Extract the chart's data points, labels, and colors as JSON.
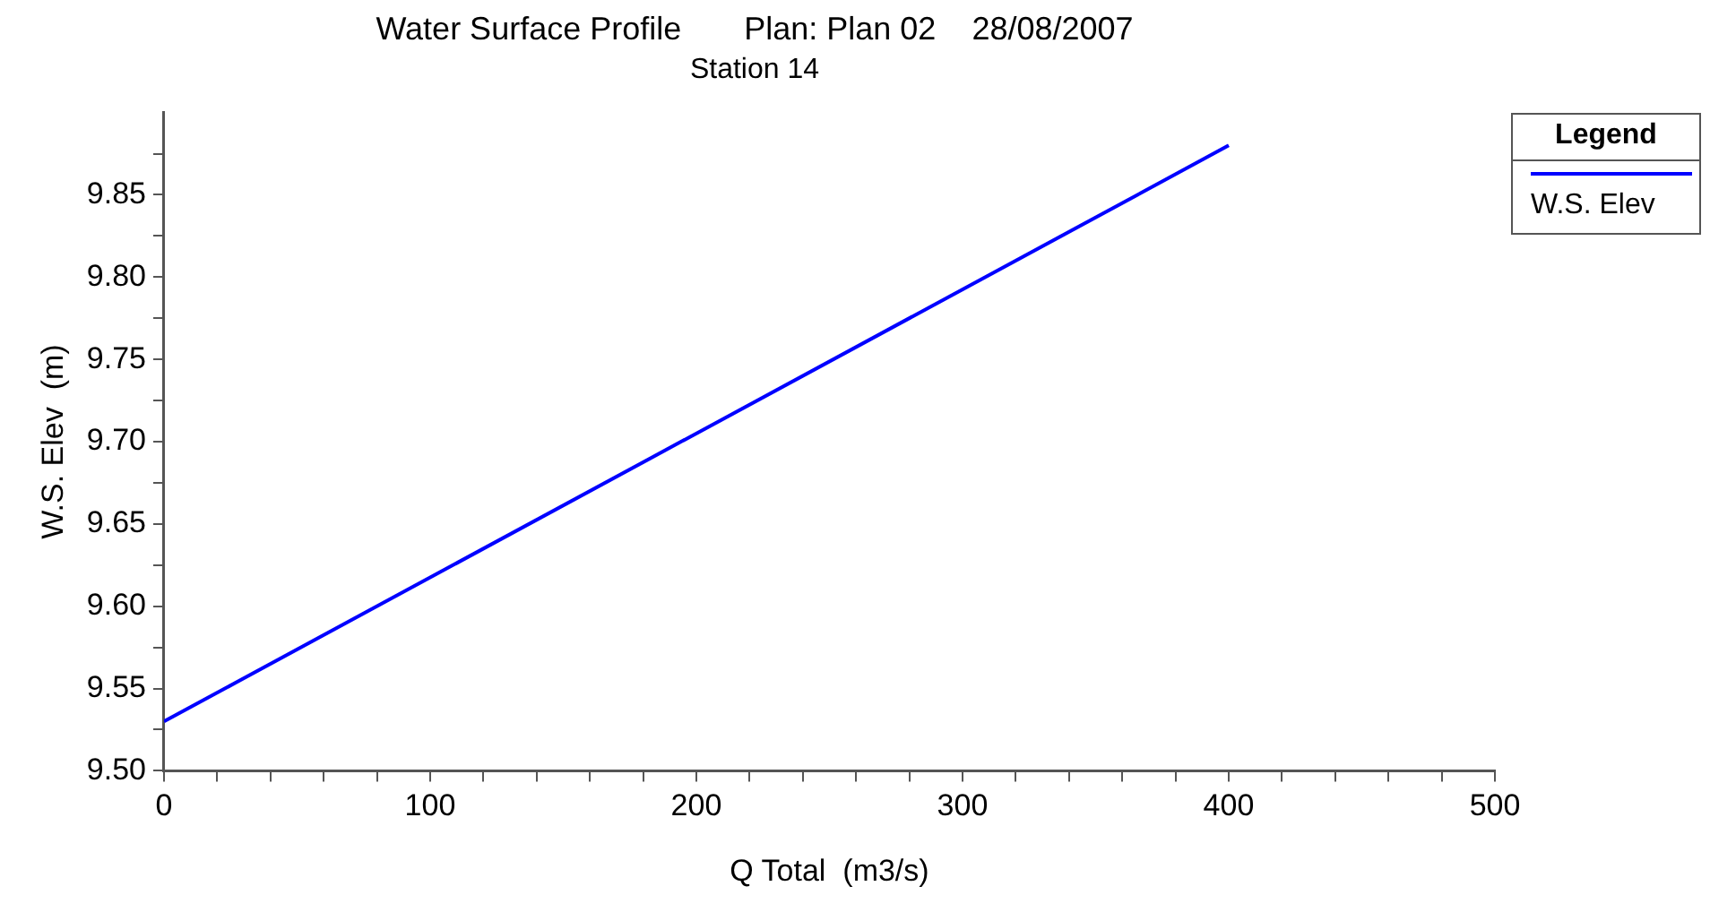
{
  "chart_data": {
    "type": "line",
    "title": "Water Surface Profile       Plan: Plan 02    28/08/2007",
    "subtitle": "Station 14",
    "xlabel": "Q Total  (m3/s)",
    "ylabel": "W.S. Elev  (m)",
    "legend_title": "Legend",
    "legend": "top right",
    "grid": false,
    "marker": "none",
    "line_style": "solid",
    "x": [
      0,
      400
    ],
    "series": [
      {
        "name": "W.S. Elev",
        "color": "#0000ff",
        "values": [
          9.53,
          9.88
        ]
      }
    ],
    "xlim": [
      0,
      500
    ],
    "xticks": [
      0,
      {
        "value": 20,
        "label": null
      },
      {
        "value": 40,
        "label": null
      },
      {
        "value": 60,
        "label": null
      },
      {
        "value": 80,
        "label": null
      },
      100,
      {
        "value": 120,
        "label": null
      },
      {
        "value": 140,
        "label": null
      },
      {
        "value": 160,
        "label": null
      },
      {
        "value": 180,
        "label": null
      },
      200,
      {
        "value": 220,
        "label": null
      },
      {
        "value": 240,
        "label": null
      },
      {
        "value": 260,
        "label": null
      },
      {
        "value": 280,
        "label": null
      },
      300,
      {
        "value": 320,
        "label": null
      },
      {
        "value": 340,
        "label": null
      },
      {
        "value": 360,
        "label": null
      },
      {
        "value": 380,
        "label": null
      },
      400,
      {
        "value": 420,
        "label": null
      },
      {
        "value": 440,
        "label": null
      },
      {
        "value": 460,
        "label": null
      },
      {
        "value": 480,
        "label": null
      },
      500
    ],
    "ylim": [
      9.5,
      9.9
    ],
    "yticks": [
      {
        "value": 9.5,
        "label": "9.50"
      },
      {
        "value": 9.525,
        "label": null
      },
      {
        "value": 9.55,
        "label": "9.55"
      },
      {
        "value": 9.575,
        "label": null
      },
      {
        "value": 9.6,
        "label": "9.60"
      },
      {
        "value": 9.625,
        "label": null
      },
      {
        "value": 9.65,
        "label": "9.65"
      },
      {
        "value": 9.675,
        "label": null
      },
      {
        "value": 9.7,
        "label": "9.70"
      },
      {
        "value": 9.725,
        "label": null
      },
      {
        "value": 9.75,
        "label": "9.75"
      },
      {
        "value": 9.775,
        "label": null
      },
      {
        "value": 9.8,
        "label": "9.80"
      },
      {
        "value": 9.825,
        "label": null
      },
      {
        "value": 9.85,
        "label": "9.85"
      },
      {
        "value": 9.875,
        "label": null
      }
    ]
  }
}
